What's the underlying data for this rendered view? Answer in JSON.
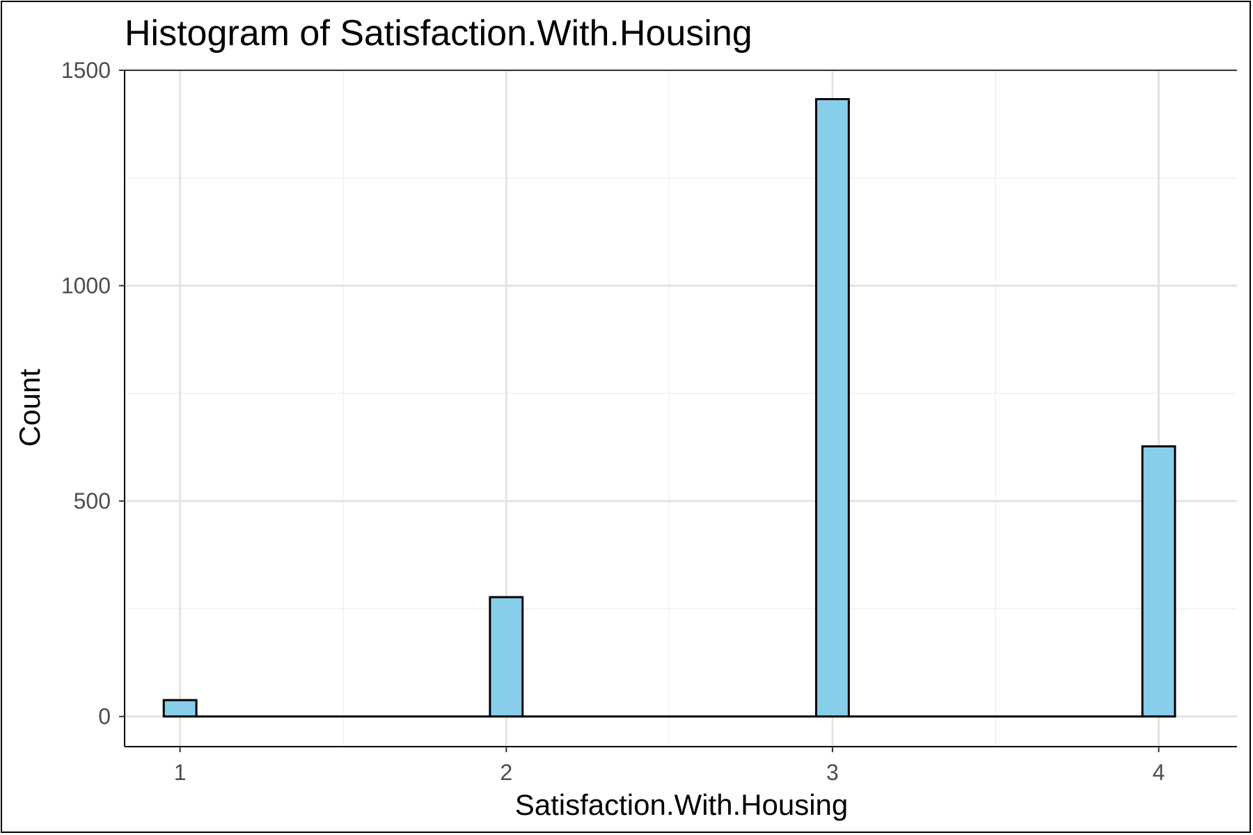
{
  "chart_data": {
    "type": "bar",
    "title": "Histogram of Satisfaction.With.Housing",
    "xlabel": "Satisfaction.With.Housing",
    "ylabel": "Count",
    "x_ticks": [
      1,
      2,
      3,
      4
    ],
    "y_ticks": [
      0,
      500,
      1000,
      1500
    ],
    "xlim": [
      0.83,
      4.24
    ],
    "ylim": [
      -70,
      1500
    ],
    "grid": true,
    "legend": "none",
    "bin_width": 0.1,
    "bins": [
      {
        "x0": 0.95,
        "x1": 1.05,
        "count": 38
      },
      {
        "x0": 1.05,
        "x1": 1.95,
        "count": 0
      },
      {
        "x0": 1.95,
        "x1": 2.05,
        "count": 277
      },
      {
        "x0": 2.05,
        "x1": 2.95,
        "count": 0
      },
      {
        "x0": 2.95,
        "x1": 3.05,
        "count": 1433
      },
      {
        "x0": 3.05,
        "x1": 3.95,
        "count": 0
      },
      {
        "x0": 3.95,
        "x1": 4.05,
        "count": 627
      }
    ],
    "fill_color": "#87CEEB",
    "outline_color": "#000000"
  }
}
